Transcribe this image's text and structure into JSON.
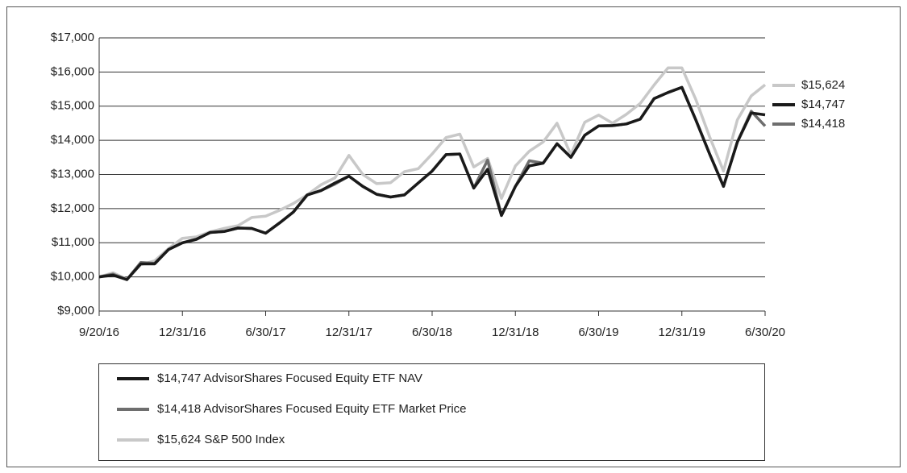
{
  "chart_data": {
    "type": "line",
    "categories": [
      "9/20/16",
      null,
      null,
      null,
      null,
      null,
      "12/31/16",
      null,
      null,
      null,
      null,
      null,
      "6/30/17",
      null,
      null,
      null,
      null,
      null,
      "12/31/17",
      null,
      null,
      null,
      null,
      null,
      "6/30/18",
      null,
      null,
      null,
      null,
      null,
      "12/31/18",
      null,
      null,
      null,
      null,
      null,
      "6/30/19",
      null,
      null,
      null,
      null,
      null,
      "12/31/19",
      null,
      null,
      null,
      null,
      null,
      "6/30/20"
    ],
    "series": [
      {
        "name": "$14,747 AdvisorShares Focused Equity ETF NAV",
        "color": "#1a1a1a",
        "values": [
          10000,
          10050,
          9920,
          10380,
          10380,
          10800,
          11000,
          11100,
          11300,
          11330,
          11430,
          11420,
          11280,
          11580,
          11900,
          12400,
          12530,
          12750,
          12950,
          12650,
          12420,
          12340,
          12400,
          12750,
          13100,
          13580,
          13600,
          12600,
          13150,
          11800,
          12650,
          13250,
          13330,
          13900,
          13500,
          14150,
          14420,
          14430,
          14480,
          14620,
          15220,
          15400,
          15550,
          14600,
          13600,
          12650,
          13950,
          14800,
          14747
        ],
        "value_labels": [
          null,
          null,
          null,
          null,
          null,
          null,
          null,
          null,
          null,
          null,
          null,
          null,
          null,
          null,
          null,
          null,
          null,
          null,
          null,
          null,
          null,
          null,
          null,
          null,
          null,
          null,
          null,
          null,
          null,
          null,
          null,
          null,
          null,
          null,
          null,
          null,
          null,
          null,
          null,
          null,
          null,
          null,
          null,
          null,
          null,
          null,
          null,
          null,
          "$14,747"
        ]
      },
      {
        "name": "$14,418 AdvisorShares Focused Equity ETF Market Price",
        "color": "#6e6e6e",
        "values": [
          10000,
          10080,
          9920,
          10420,
          10400,
          10800,
          11000,
          11100,
          11300,
          11330,
          11430,
          11420,
          11280,
          11580,
          11900,
          12400,
          12530,
          12720,
          12950,
          12650,
          12420,
          12340,
          12400,
          12750,
          13100,
          13580,
          13600,
          12600,
          13420,
          11800,
          12650,
          13400,
          13330,
          13900,
          13500,
          14150,
          14420,
          14430,
          14480,
          14620,
          15220,
          15400,
          15550,
          14600,
          13600,
          12650,
          13950,
          14850,
          14418
        ],
        "value_labels": [
          null,
          null,
          null,
          null,
          null,
          null,
          null,
          null,
          null,
          null,
          null,
          null,
          null,
          null,
          null,
          null,
          null,
          null,
          null,
          null,
          null,
          null,
          null,
          null,
          null,
          null,
          null,
          null,
          null,
          null,
          null,
          null,
          null,
          null,
          null,
          null,
          null,
          null,
          null,
          null,
          null,
          null,
          null,
          null,
          null,
          null,
          null,
          null,
          "$14,418"
        ]
      },
      {
        "name": "$15,624 S&P 500 Index",
        "color": "#c8c8c8",
        "values": [
          10000,
          10120,
          9930,
          10360,
          10470,
          10830,
          11130,
          11170,
          11320,
          11420,
          11500,
          11740,
          11780,
          11950,
          12150,
          12400,
          12700,
          12900,
          13560,
          13000,
          12730,
          12760,
          13080,
          13170,
          13600,
          14080,
          14180,
          13220,
          13470,
          12300,
          13250,
          13680,
          13950,
          14500,
          13580,
          14530,
          14740,
          14500,
          14760,
          15080,
          15620,
          16120,
          16120,
          15200,
          14100,
          13100,
          14600,
          15300,
          15624
        ],
        "value_labels": [
          null,
          null,
          null,
          null,
          null,
          null,
          null,
          null,
          null,
          null,
          null,
          null,
          null,
          null,
          null,
          null,
          null,
          null,
          null,
          null,
          null,
          null,
          null,
          null,
          null,
          null,
          null,
          null,
          null,
          null,
          null,
          null,
          null,
          null,
          null,
          null,
          null,
          null,
          null,
          null,
          null,
          null,
          null,
          null,
          null,
          null,
          null,
          null,
          "$15,624"
        ]
      }
    ],
    "ylim": [
      9000,
      17000
    ],
    "yticks": [
      {
        "value": 9000,
        "label": "$9,000"
      },
      {
        "value": 10000,
        "label": "$10,000"
      },
      {
        "value": 11000,
        "label": "$11,000"
      },
      {
        "value": 12000,
        "label": "$12,000"
      },
      {
        "value": 13000,
        "label": "$13,000"
      },
      {
        "value": 14000,
        "label": "$14,000"
      },
      {
        "value": 15000,
        "label": "$15,000"
      },
      {
        "value": 16000,
        "label": "$16,000"
      },
      {
        "value": 17000,
        "label": "$17,000"
      }
    ],
    "grid": true
  }
}
